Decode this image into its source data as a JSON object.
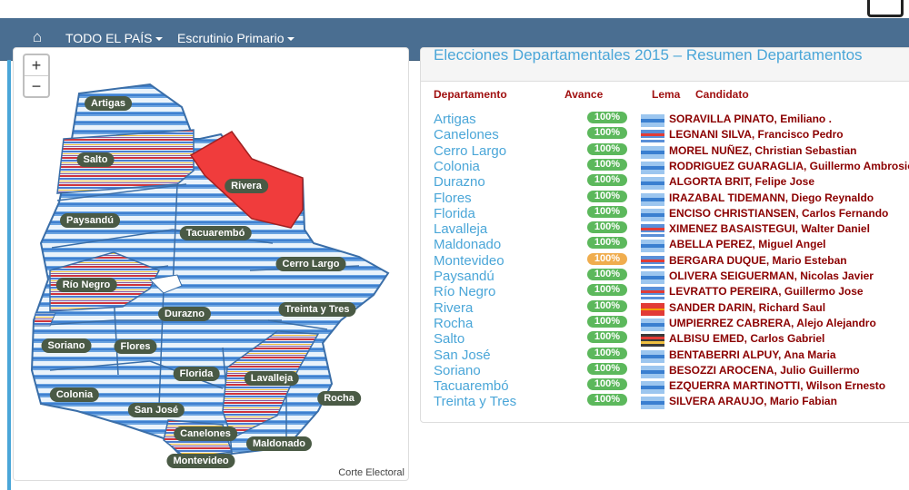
{
  "navbar": {
    "home_icon": "home-icon",
    "menu1": "TODO EL PAÍS",
    "menu2": "Escrutinio Primario"
  },
  "map": {
    "zoom_in": "+",
    "zoom_out": "−",
    "attribution": "Corte Electoral",
    "labels": {
      "artigas": "Artigas",
      "salto": "Salto",
      "rivera": "Rivera",
      "paysandu": "Paysandú",
      "tacuarembo": "Tacuarembó",
      "cerro_largo": "Cerro Largo",
      "rio_negro": "Río Negro",
      "durazno": "Durazno",
      "treinta_y_tres": "Treinta y Tres",
      "soriano": "Soriano",
      "flores": "Flores",
      "florida": "Florida",
      "lavalleja": "Lavalleja",
      "colonia": "Colonia",
      "san_jose": "San José",
      "rocha": "Rocha",
      "canelones": "Canelones",
      "maldonado": "Maldonado",
      "montevideo": "Montevideo"
    },
    "colors": {
      "party_blue": "#3a7fd0",
      "party_red": "#e23b36",
      "party_multi": "#b06a8a"
    }
  },
  "results": {
    "title": "Elecciones Departamentales 2015 – Resumen Departamentos",
    "headers": {
      "departamento": "Departamento",
      "avance": "Avance",
      "lema": "Lema",
      "candidato": "Candidato"
    },
    "rows": [
      {
        "dept": "Artigas",
        "avance": "100%",
        "flag": "blue",
        "cand": "SORAVILLA PINATO, Emiliano ."
      },
      {
        "dept": "Canelones",
        "avance": "100%",
        "flag": "multi",
        "cand": "LEGNANI SILVA, Francisco Pedro"
      },
      {
        "dept": "Cerro Largo",
        "avance": "100%",
        "flag": "blue",
        "cand": "MOREL NUÑEZ, Christian Sebastian"
      },
      {
        "dept": "Colonia",
        "avance": "100%",
        "flag": "blue",
        "cand": "RODRIGUEZ GUARAGLIA, Guillermo Ambrosio"
      },
      {
        "dept": "Durazno",
        "avance": "100%",
        "flag": "blue",
        "cand": "ALGORTA BRIT, Felipe Jose"
      },
      {
        "dept": "Flores",
        "avance": "100%",
        "flag": "blue",
        "cand": "IRAZABAL TIDEMANN, Diego Reynaldo"
      },
      {
        "dept": "Florida",
        "avance": "100%",
        "flag": "blue",
        "cand": "ENCISO CHRISTIANSEN, Carlos Fernando"
      },
      {
        "dept": "Lavalleja",
        "avance": "100%",
        "flag": "multi",
        "cand": "XIMENEZ BASAISTEGUI, Walter Daniel"
      },
      {
        "dept": "Maldonado",
        "avance": "100%",
        "flag": "blue",
        "cand": "ABELLA PEREZ, Miguel Angel"
      },
      {
        "dept": "Montevideo",
        "avance": "100%",
        "flag": "multi",
        "cand": "BERGARA DUQUE, Mario Esteban"
      },
      {
        "dept": "Paysandú",
        "avance": "100%",
        "flag": "blue",
        "cand": "OLIVERA SEIGUERMAN, Nicolas Javier"
      },
      {
        "dept": "Río Negro",
        "avance": "100%",
        "flag": "multi",
        "cand": "LEVRATTO PEREIRA, Guillermo Jose"
      },
      {
        "dept": "Rivera",
        "avance": "100%",
        "flag": "red",
        "cand": "SANDER DARIN, Richard Saul"
      },
      {
        "dept": "Rocha",
        "avance": "100%",
        "flag": "blue",
        "cand": "UMPIERREZ CABRERA, Alejo Alejandro"
      },
      {
        "dept": "Salto",
        "avance": "100%",
        "flag": "multi2",
        "cand": "ALBISU EMED, Carlos Gabriel"
      },
      {
        "dept": "San José",
        "avance": "100%",
        "flag": "blue",
        "cand": "BENTABERRI ALPUY, Ana Maria"
      },
      {
        "dept": "Soriano",
        "avance": "100%",
        "flag": "blue",
        "cand": "BESOZZI AROCENA, Julio Guillermo"
      },
      {
        "dept": "Tacuarembó",
        "avance": "100%",
        "flag": "blue",
        "cand": "EZQUERRA MARTINOTTI, Wilson Ernesto"
      },
      {
        "dept": "Treinta y Tres",
        "avance": "100%",
        "flag": "blue",
        "cand": "SILVERA ARAUJO, Mario Fabian"
      }
    ],
    "badge_colors": {
      "default": "#5cb85c",
      "montevideo": "#f0ad4e"
    }
  }
}
